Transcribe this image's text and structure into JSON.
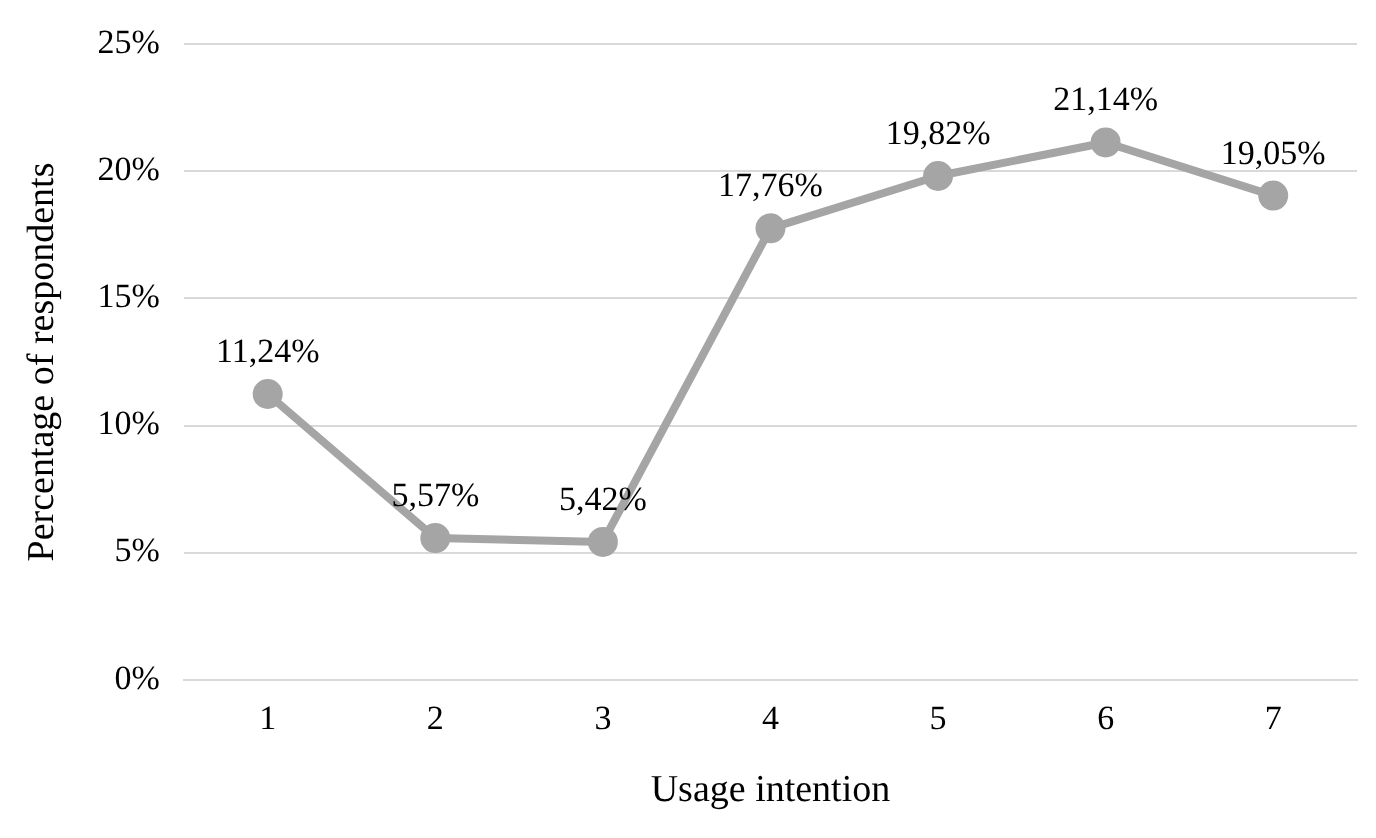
{
  "chart_data": {
    "type": "line",
    "xlabel": "Usage intention",
    "ylabel": "Percentage of respondents",
    "categories": [
      "1",
      "2",
      "3",
      "4",
      "5",
      "6",
      "7"
    ],
    "series": [
      {
        "color": "#a5a5a5",
        "values": [
          11.24,
          5.57,
          5.42,
          17.76,
          19.82,
          21.14,
          19.05
        ],
        "value_labels": [
          "11,24%",
          "5,57%",
          "5,42%",
          "17,76%",
          "19,82%",
          "21,14%",
          "19,05%"
        ]
      }
    ],
    "ylim": [
      0,
      25
    ],
    "yticks": [
      {
        "value": 0,
        "label": "0%"
      },
      {
        "value": 5,
        "label": "5%"
      },
      {
        "value": 10,
        "label": "10%"
      },
      {
        "value": 15,
        "label": "15%"
      },
      {
        "value": 20,
        "label": "20%"
      },
      {
        "value": 25,
        "label": "25%"
      }
    ],
    "grid": "y",
    "legend": false,
    "marker": "circle",
    "line_style": "solid"
  }
}
